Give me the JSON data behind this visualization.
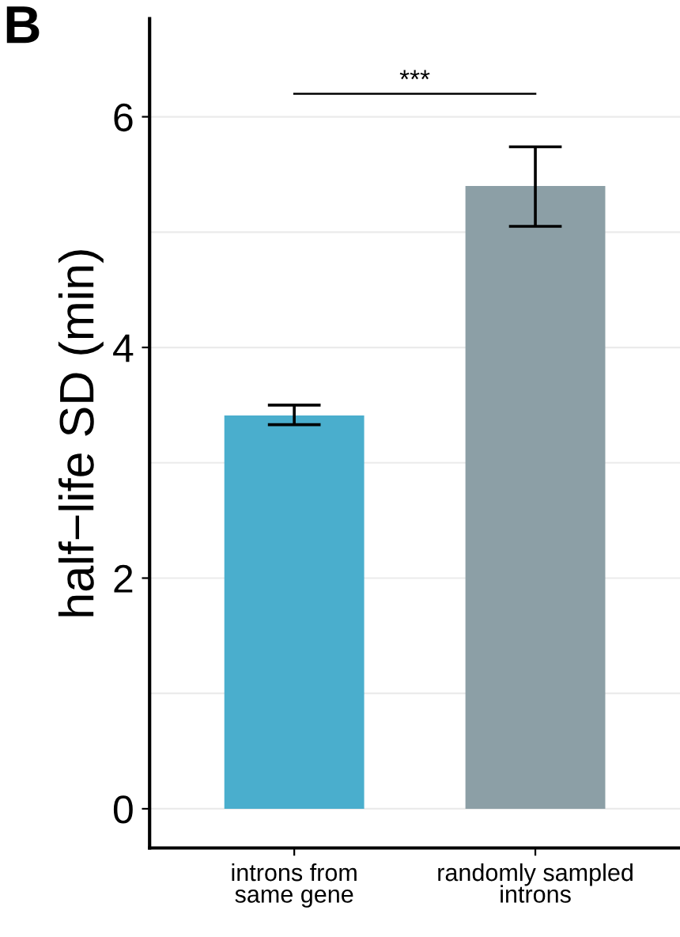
{
  "chart_data": {
    "type": "bar",
    "ylabel": "half−life SD (min)",
    "categories": [
      "introns from\nsame gene",
      "randomly sampled\nintrons"
    ],
    "values": [
      3.41,
      5.4
    ],
    "colors": [
      "#4aaecd",
      "#8c9fa6"
    ],
    "errors": [
      [
        3.33,
        3.5
      ],
      [
        5.05,
        5.74
      ]
    ],
    "ylim": [
      -0.34,
      6.85
    ],
    "yticks": [
      0,
      {
        "value": 1,
        "label": null
      },
      2,
      {
        "value": 3,
        "label": null
      },
      4,
      {
        "value": 5,
        "label": null
      },
      6
    ],
    "grid": "y",
    "ref_lines": [
      {
        "axis": "y",
        "value": 6.2,
        "color": "#000000"
      }
    ],
    "annotations": [
      "B",
      "***"
    ]
  }
}
